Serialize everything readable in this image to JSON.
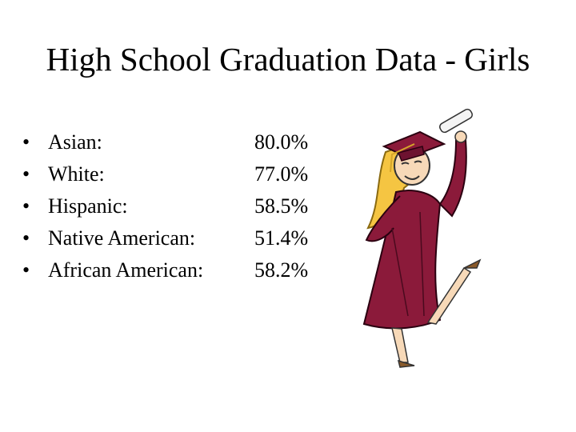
{
  "slide": {
    "title": "High School Graduation Data - Girls",
    "items": [
      {
        "label": "Asian:",
        "value": "80.0%"
      },
      {
        "label": "White:",
        "value": "77.0%"
      },
      {
        "label": "Hispanic:",
        "value": "58.5%"
      },
      {
        "label": "Native American:",
        "value": "51.4%"
      },
      {
        "label": "African American:",
        "value": "58.2%"
      }
    ]
  }
}
